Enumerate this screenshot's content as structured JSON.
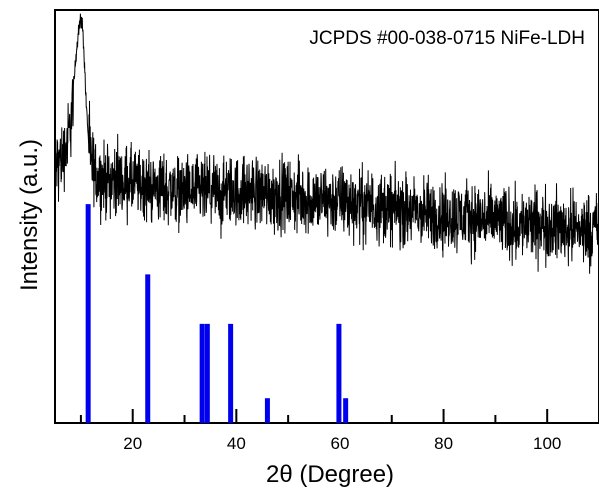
{
  "chart_data": {
    "type": "line",
    "xlabel": "2θ (Degree)",
    "ylabel": "Intensity (a.u.)",
    "xlim": [
      5,
      110
    ],
    "ylim": [
      0,
      1
    ],
    "x_ticks": [
      20,
      40,
      60,
      80,
      100
    ],
    "x_minor_ticks": [
      10,
      30,
      50,
      70,
      90
    ],
    "y_ticks": [],
    "grid": false,
    "annotations": [
      "JCPDS #00-038-0715 NiFe-LDH"
    ],
    "series": [
      {
        "kind": "measured-pattern",
        "color": "#000000",
        "x": [
          5,
          6,
          7,
          8,
          8.5,
          9,
          9.5,
          10,
          10.3,
          10.6,
          11,
          11.5,
          12,
          13,
          14,
          16,
          18,
          20,
          25,
          30,
          35,
          40,
          45,
          50,
          55,
          60,
          65,
          70,
          75,
          80,
          85,
          90,
          95,
          100,
          105,
          110
        ],
        "y": [
          0.62,
          0.64,
          0.66,
          0.72,
          0.8,
          0.88,
          0.95,
          0.98,
          0.96,
          0.9,
          0.78,
          0.68,
          0.63,
          0.6,
          0.59,
          0.59,
          0.59,
          0.58,
          0.57,
          0.56,
          0.56,
          0.56,
          0.56,
          0.55,
          0.54,
          0.54,
          0.53,
          0.52,
          0.51,
          0.5,
          0.5,
          0.49,
          0.48,
          0.48,
          0.47,
          0.47
        ]
      },
      {
        "kind": "reference-sticks",
        "color": "#0000ee",
        "x": [
          11.4,
          22.9,
          33.4,
          34.4,
          38.9,
          46,
          59.8,
          61.1
        ],
        "y": [
          0.53,
          0.36,
          0.24,
          0.24,
          0.24,
          0.06,
          0.24,
          0.06
        ]
      }
    ]
  }
}
